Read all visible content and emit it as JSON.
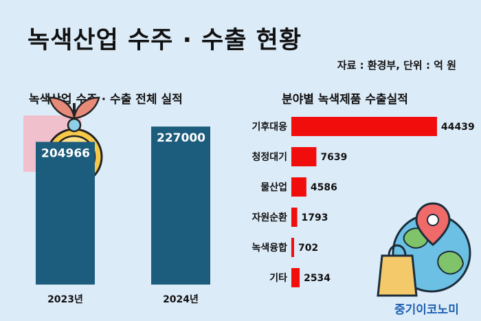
{
  "header": {
    "title": "녹색산업 수주 · 수출 현황",
    "source": "자료 : 환경부, 단위 : 억 원"
  },
  "left_panel": {
    "subtitle": "녹색산업 수주 · 수출 전체 실적"
  },
  "right_panel": {
    "subtitle": "분야별 녹색제품 수출실적"
  },
  "brand": "중기이코노미",
  "icons": [
    "money-plant-icon",
    "shopping-bag-globe-icon",
    "location-pin-icon"
  ],
  "colors": {
    "left_bar": "#1c5c7c",
    "right_bar": "#f20d0d",
    "background": "#dcebf8"
  },
  "chart_data": [
    {
      "type": "bar",
      "title": "녹색산업 수주 · 수출 전체 실적",
      "categories": [
        "2023년",
        "2024년"
      ],
      "values": [
        204966,
        227000
      ],
      "ylim": [
        0,
        235000
      ],
      "grid": false
    },
    {
      "type": "bar",
      "orientation": "horizontal",
      "title": "분야별 녹색제품 수출실적",
      "categories": [
        "기후대응",
        "청정대기",
        "물산업",
        "자원순환",
        "녹색융합",
        "기타"
      ],
      "values": [
        44439,
        7639,
        4586,
        1793,
        702,
        2534
      ],
      "xlim": [
        0,
        44439
      ],
      "grid": false
    }
  ]
}
